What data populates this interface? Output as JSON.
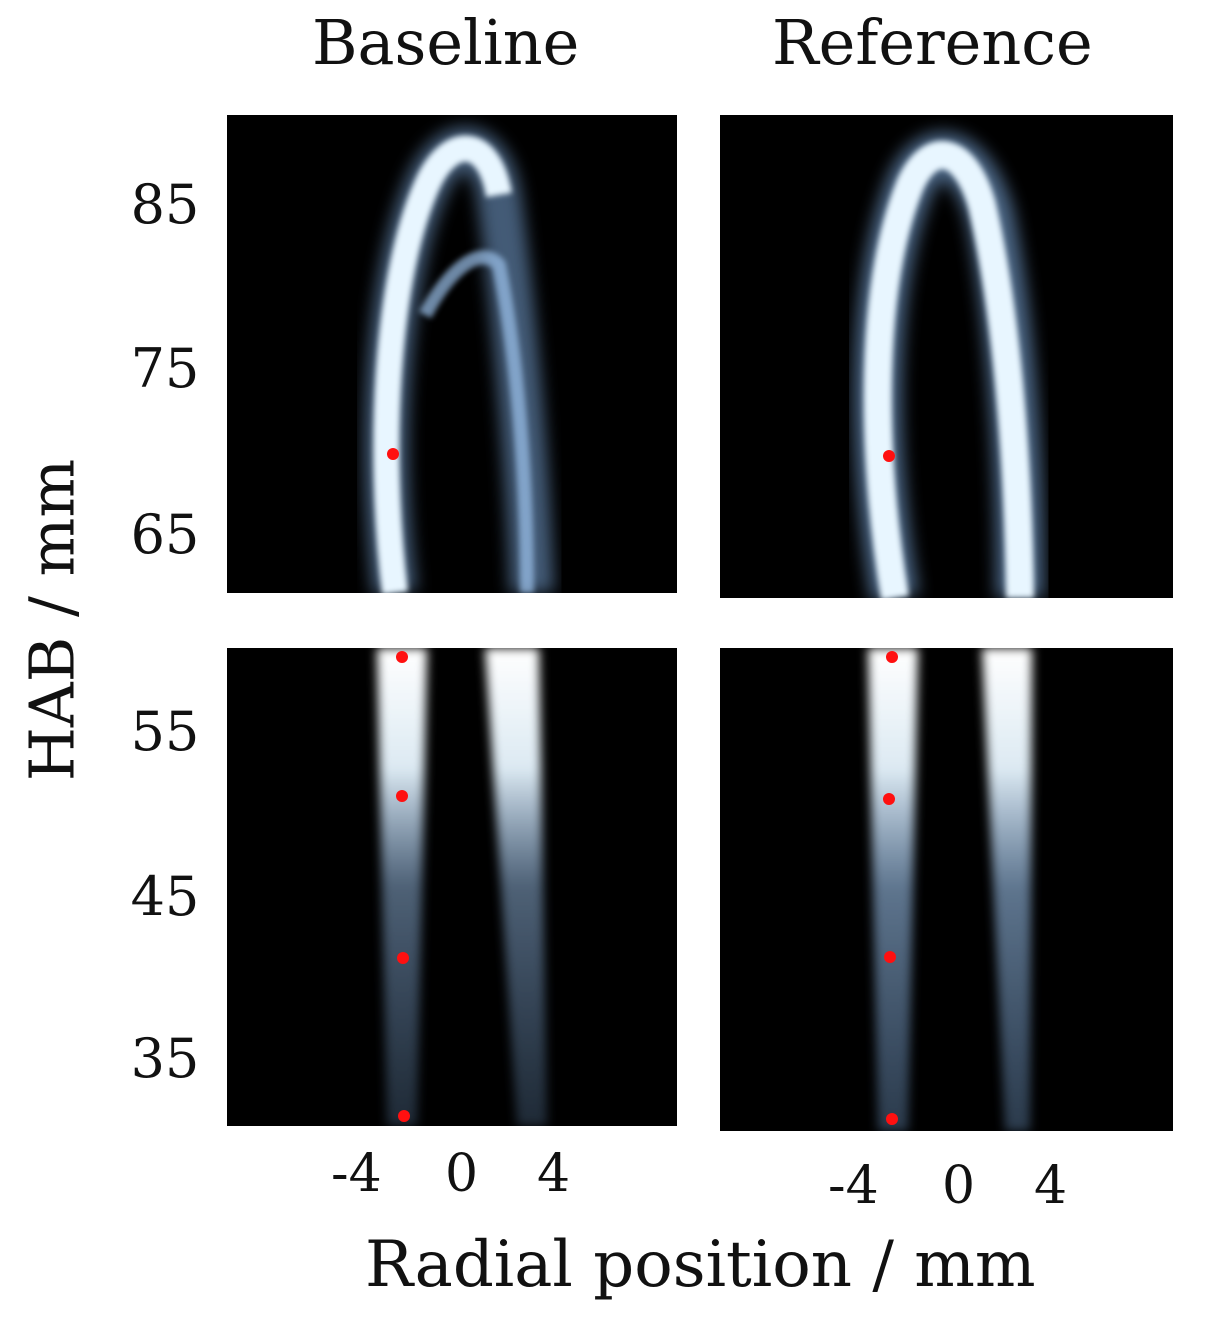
{
  "columns": [
    {
      "title": "Baseline"
    },
    {
      "title": "Reference"
    }
  ],
  "y_axis": {
    "label": "HAB / mm",
    "ticks": [
      "85",
      "75",
      "65",
      "55",
      "45",
      "35"
    ]
  },
  "x_axis": {
    "label": "Radial position / mm",
    "ticks": [
      "-4",
      "0",
      "4"
    ]
  },
  "colors": {
    "background": "#000000",
    "flame_glow": "#e8f6ff",
    "flame_edge": "#7aa6d8",
    "marker": "#ff0000"
  }
}
